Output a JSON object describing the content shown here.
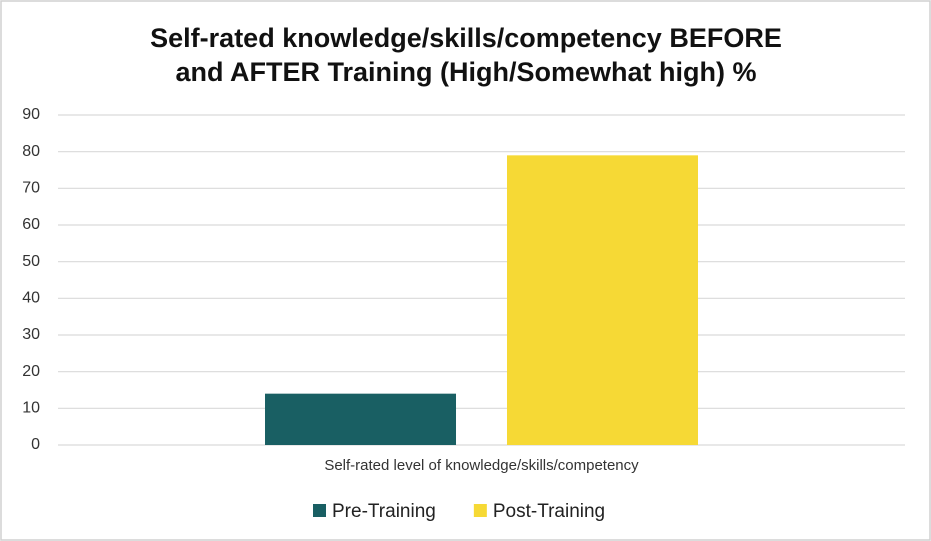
{
  "chart_data": {
    "type": "bar",
    "title": [
      "Self-rated knowledge/skills/competency BEFORE",
      "and AFTER Training (High/Somewhat high) %"
    ],
    "categories": [
      "Self-rated level of knowledge/skills/competency"
    ],
    "series": [
      {
        "name": "Pre-Training",
        "color": "#195f63",
        "values": [
          14
        ]
      },
      {
        "name": "Post-Training",
        "color": "#f6d935",
        "values": [
          79
        ]
      }
    ],
    "ylim": [
      0,
      90
    ],
    "yticks": [
      0,
      10,
      20,
      30,
      40,
      50,
      60,
      70,
      80,
      90
    ],
    "grid": true,
    "legend": "bottom"
  }
}
